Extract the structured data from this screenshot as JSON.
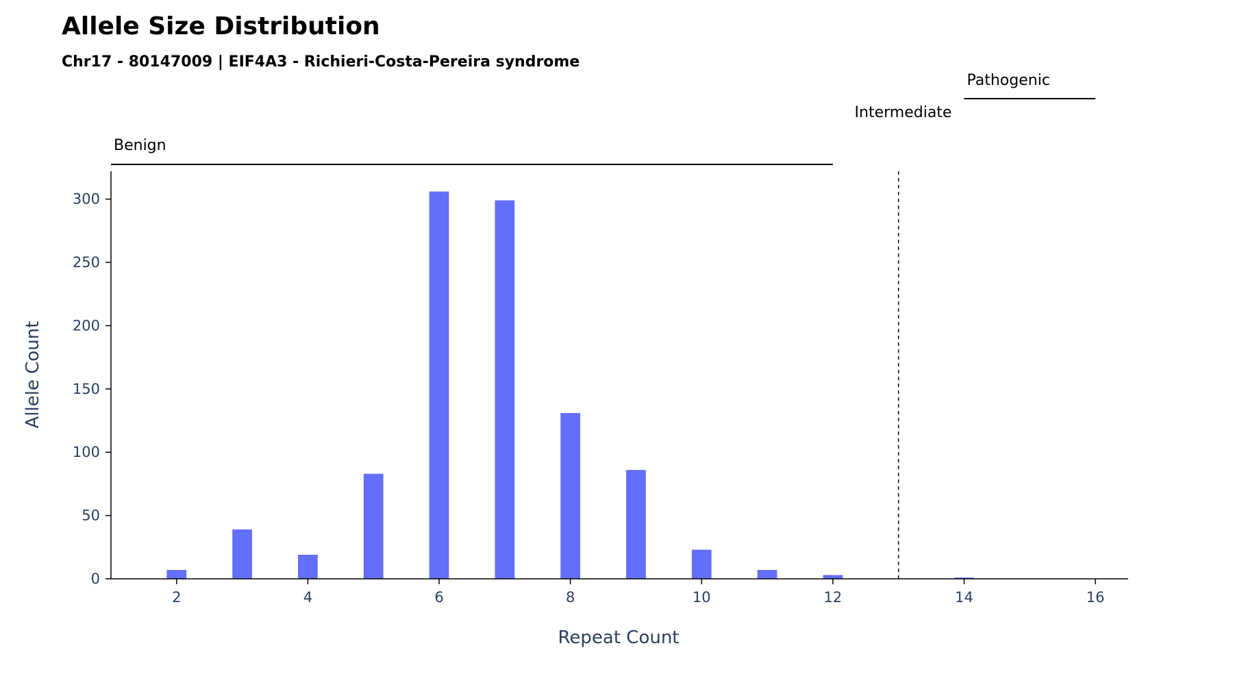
{
  "chart_data": {
    "type": "bar",
    "title": "Allele Size Distribution",
    "subtitle": "Chr17 - 80147009 | EIF4A3 - Richieri-Costa-Pereira syndrome",
    "xlabel": "Repeat Count",
    "ylabel": "Allele Count",
    "x": [
      2,
      3,
      4,
      5,
      6,
      7,
      8,
      9,
      10,
      11,
      12,
      14
    ],
    "values": [
      7,
      39,
      19,
      83,
      306,
      299,
      131,
      86,
      23,
      7,
      3,
      1
    ],
    "xlim": [
      1,
      16.5
    ],
    "ylim": [
      0,
      322
    ],
    "xticks": [
      2,
      4,
      6,
      8,
      10,
      12,
      14,
      16
    ],
    "yticks": [
      0,
      50,
      100,
      150,
      200,
      250,
      300
    ],
    "bar_color": "#636efa",
    "grid": false,
    "threshold_line": {
      "x": 13,
      "style": "dashed"
    },
    "regions": [
      {
        "label": "Benign",
        "x_start": 1,
        "x_end": 12
      },
      {
        "label": "Intermediate",
        "x_start": 12,
        "x_end": 14
      },
      {
        "label": "Pathogenic",
        "x_start": 14,
        "x_end": 16
      }
    ]
  }
}
